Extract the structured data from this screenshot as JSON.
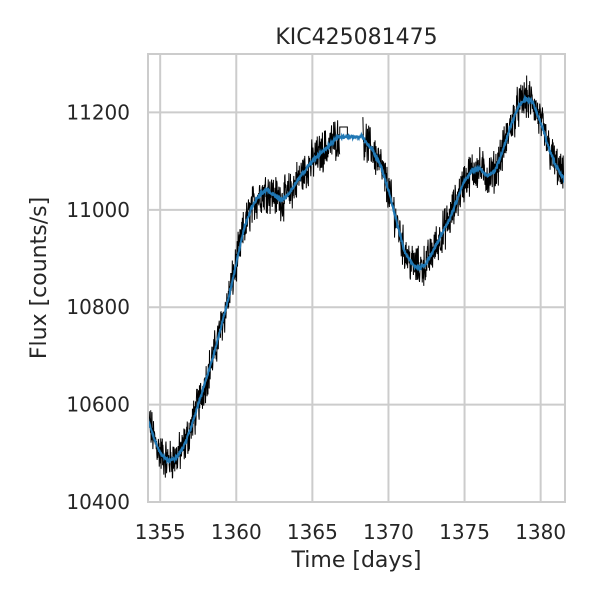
{
  "chart_data": {
    "type": "line",
    "title": "KIC425081475",
    "xlabel": "Time [days]",
    "ylabel": "Flux [counts/s]",
    "xlim": [
      1354.2,
      1381.6
    ],
    "ylim": [
      10400,
      11320
    ],
    "x_ticks": [
      1355,
      1360,
      1365,
      1370,
      1375,
      1380
    ],
    "y_ticks": [
      10400,
      10600,
      10800,
      11000,
      11200
    ],
    "grid": true,
    "gap": [
      1366.8,
      1368.3
    ],
    "colors": {
      "raw": "#000000",
      "smooth": "#1f77b4",
      "grid": "#cccccc",
      "frame": "#cccccc"
    },
    "series": [
      {
        "style": "raw",
        "x": [
          1354.2,
          1354.6,
          1355.0,
          1355.5,
          1356.0,
          1356.5,
          1357.0,
          1357.5,
          1358.0,
          1358.5,
          1359.0,
          1359.5,
          1360.0,
          1360.5,
          1361.0,
          1361.5,
          1362.0,
          1362.5,
          1363.0,
          1363.5,
          1364.0,
          1364.5,
          1365.0,
          1365.5,
          1366.0,
          1366.5,
          1366.8,
          1368.3,
          1368.5,
          1369.0,
          1369.5,
          1370.0,
          1370.5,
          1371.0,
          1371.5,
          1372.0,
          1372.5,
          1373.0,
          1373.5,
          1374.0,
          1374.5,
          1375.0,
          1375.5,
          1376.0,
          1376.5,
          1377.0,
          1377.5,
          1378.0,
          1378.5,
          1379.0,
          1379.5,
          1380.0,
          1380.5,
          1381.0,
          1381.6
        ],
        "y": [
          10570,
          10530,
          10500,
          10485,
          10490,
          10510,
          10550,
          10600,
          10650,
          10700,
          10760,
          10820,
          10890,
          10960,
          11005,
          11030,
          11040,
          11030,
          11020,
          11035,
          11060,
          11080,
          11100,
          11115,
          11130,
          11145,
          11150,
          11150,
          11140,
          11120,
          11090,
          11040,
          10980,
          10920,
          10890,
          10880,
          10890,
          10920,
          10950,
          10980,
          11020,
          11060,
          11080,
          11085,
          11070,
          11080,
          11120,
          11170,
          11210,
          11230,
          11220,
          11180,
          11130,
          11090,
          11060
        ]
      },
      {
        "style": "smooth",
        "x": [
          1354.2,
          1354.6,
          1355.0,
          1355.5,
          1356.0,
          1356.5,
          1357.0,
          1357.5,
          1358.0,
          1358.5,
          1359.0,
          1359.5,
          1360.0,
          1360.5,
          1361.0,
          1361.5,
          1362.0,
          1362.5,
          1363.0,
          1363.5,
          1364.0,
          1364.5,
          1365.0,
          1365.5,
          1366.0,
          1366.5,
          1366.8,
          1368.3,
          1368.5,
          1369.0,
          1369.5,
          1370.0,
          1370.5,
          1371.0,
          1371.5,
          1372.0,
          1372.5,
          1373.0,
          1373.5,
          1374.0,
          1374.5,
          1375.0,
          1375.5,
          1376.0,
          1376.5,
          1377.0,
          1377.5,
          1378.0,
          1378.5,
          1379.0,
          1379.5,
          1380.0,
          1380.5,
          1381.0,
          1381.6
        ],
        "y": [
          10570,
          10530,
          10500,
          10485,
          10490,
          10510,
          10550,
          10600,
          10650,
          10700,
          10760,
          10820,
          10890,
          10960,
          11005,
          11030,
          11040,
          11030,
          11020,
          11035,
          11060,
          11080,
          11100,
          11115,
          11130,
          11145,
          11150,
          11150,
          11140,
          11120,
          11090,
          11040,
          10980,
          10920,
          10890,
          10880,
          10890,
          10920,
          10950,
          10980,
          11020,
          11060,
          11080,
          11085,
          11070,
          11080,
          11120,
          11170,
          11210,
          11230,
          11220,
          11180,
          11130,
          11090,
          11060
        ]
      }
    ]
  }
}
